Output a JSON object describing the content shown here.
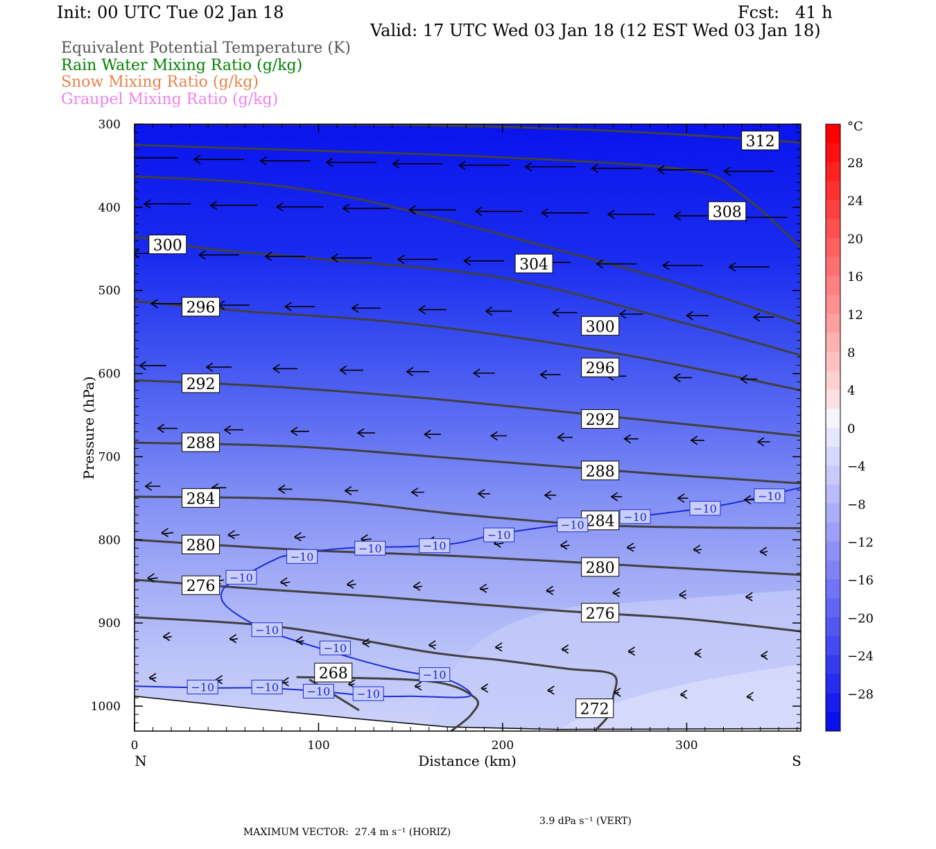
{
  "header": {
    "init": "Init: 00 UTC Tue 02 Jan 18",
    "fcst": "Fcst:   41 h",
    "valid": "Valid: 17 UTC Wed 03 Jan 18 (12 EST Wed 03 Jan 18)"
  },
  "legend": [
    {
      "label": "Equivalent Potential Temperature (K)",
      "color": "#555555"
    },
    {
      "label": "Rain Water Mixing Ratio (g/kg)",
      "color": "#008000"
    },
    {
      "label": "Snow Mixing Ratio (g/kg)",
      "color": "#e8834a"
    },
    {
      "label": "Graupel Mixing Ratio (g/kg)",
      "color": "#ee82ee"
    }
  ],
  "chart_data": {
    "type": "cross-section",
    "xlabel": "Distance (km)",
    "ylabel": "Pressure (hPa)",
    "x_ticks": [
      0,
      100,
      200,
      300
    ],
    "x_range": [
      0,
      362
    ],
    "y_ticks": [
      300,
      400,
      500,
      600,
      700,
      800,
      900,
      1000
    ],
    "y_range": [
      300,
      1030
    ],
    "left_end_label": "N",
    "right_end_label": "S",
    "colorbar": {
      "unit": "°C",
      "labels": [
        "28",
        "24",
        "20",
        "16",
        "12",
        "8",
        "4",
        "0",
        "−4",
        "−8",
        "−12",
        "−16",
        "−20",
        "−24",
        "−28"
      ]
    },
    "theta_e_contours": [
      {
        "level": "312",
        "points": [
          [
            36,
            300
          ],
          [
            150,
            301
          ],
          [
            260,
            308
          ],
          [
            362,
            322
          ]
        ],
        "labels": [
          [
            340,
            320
          ]
        ]
      },
      {
        "level": "308",
        "points": [
          [
            0,
            325
          ],
          [
            100,
            332
          ],
          [
            200,
            340
          ],
          [
            300,
            355
          ],
          [
            330,
            385
          ],
          [
            362,
            448
          ]
        ],
        "labels": [
          [
            322,
            405
          ]
        ]
      },
      {
        "level": "304",
        "points": [
          [
            0,
            363
          ],
          [
            60,
            370
          ],
          [
            110,
            385
          ],
          [
            160,
            410
          ],
          [
            220,
            445
          ],
          [
            290,
            488
          ],
          [
            362,
            540
          ]
        ],
        "labels": [
          [
            217,
            468
          ]
        ]
      },
      {
        "level": "300",
        "points": [
          [
            0,
            435
          ],
          [
            40,
            450
          ],
          [
            100,
            462
          ],
          [
            200,
            485
          ],
          [
            300,
            540
          ],
          [
            362,
            578
          ]
        ],
        "labels": [
          [
            18,
            445
          ],
          [
            253,
            543
          ]
        ]
      },
      {
        "level": "296",
        "points": [
          [
            0,
            513
          ],
          [
            60,
            525
          ],
          [
            150,
            540
          ],
          [
            260,
            575
          ],
          [
            362,
            620
          ]
        ],
        "labels": [
          [
            36,
            520
          ],
          [
            253,
            593
          ]
        ]
      },
      {
        "level": "292",
        "points": [
          [
            0,
            608
          ],
          [
            70,
            615
          ],
          [
            160,
            630
          ],
          [
            260,
            652
          ],
          [
            362,
            675
          ]
        ],
        "labels": [
          [
            36,
            612
          ],
          [
            253,
            655
          ]
        ]
      },
      {
        "level": "288",
        "points": [
          [
            0,
            683
          ],
          [
            90,
            688
          ],
          [
            180,
            703
          ],
          [
            280,
            720
          ],
          [
            362,
            732
          ]
        ],
        "labels": [
          [
            36,
            683
          ],
          [
            253,
            717
          ]
        ]
      },
      {
        "level": "284",
        "points": [
          [
            0,
            748
          ],
          [
            100,
            752
          ],
          [
            180,
            770
          ],
          [
            260,
            783
          ],
          [
            362,
            786
          ]
        ],
        "labels": [
          [
            36,
            750
          ],
          [
            253,
            777
          ]
        ]
      },
      {
        "level": "280",
        "points": [
          [
            0,
            800
          ],
          [
            90,
            812
          ],
          [
            180,
            820
          ],
          [
            280,
            832
          ],
          [
            362,
            842
          ]
        ],
        "labels": [
          [
            36,
            806
          ],
          [
            253,
            833
          ]
        ]
      },
      {
        "level": "276",
        "points": [
          [
            0,
            848
          ],
          [
            60,
            858
          ],
          [
            130,
            868
          ],
          [
            230,
            885
          ],
          [
            300,
            895
          ],
          [
            362,
            910
          ]
        ],
        "labels": [
          [
            36,
            855
          ],
          [
            253,
            888
          ]
        ]
      },
      {
        "level": "272",
        "points": [
          [
            0,
            893
          ],
          [
            80,
            905
          ],
          [
            160,
            935
          ],
          [
            200,
            945
          ],
          [
            235,
            955
          ],
          [
            260,
            962
          ],
          [
            260,
            990
          ],
          [
            258,
            1010
          ],
          [
            250,
            1030
          ]
        ],
        "labels": [
          [
            250,
            1003
          ]
        ]
      },
      {
        "level": "268",
        "points": [
          [
            88,
            965
          ],
          [
            160,
            970
          ],
          [
            185,
            990
          ],
          [
            183,
            1010
          ],
          [
            172,
            1030
          ]
        ],
        "labels": [
          [
            108,
            960
          ]
        ]
      },
      {
        "level": "268",
        "points": [
          [
            95,
            968
          ],
          [
            122,
            1005
          ]
        ],
        "labels": []
      }
    ],
    "temp_isotherms": [
      {
        "level": "−10",
        "points": [
          [
            0,
            976
          ],
          [
            40,
            978
          ],
          [
            70,
            978
          ],
          [
            100,
            982
          ],
          [
            130,
            988
          ],
          [
            150,
            988
          ],
          [
            182,
            988
          ],
          [
            170,
            968
          ],
          [
            140,
            955
          ],
          [
            100,
            930
          ],
          [
            70,
            907
          ],
          [
            50,
            880
          ],
          [
            48,
            860
          ],
          [
            58,
            845
          ],
          [
            75,
            825
          ],
          [
            85,
            818
          ],
          [
            115,
            810
          ],
          [
            150,
            808
          ],
          [
            175,
            804
          ],
          [
            200,
            792
          ],
          [
            240,
            780
          ],
          [
            280,
            770
          ],
          [
            320,
            758
          ],
          [
            362,
            737
          ]
        ],
        "labels": [
          [
            37,
            977
          ],
          [
            72,
            977
          ],
          [
            100,
            982
          ],
          [
            127,
            985
          ],
          [
            163,
            962
          ],
          [
            109,
            930
          ],
          [
            72,
            908
          ],
          [
            58,
            845
          ],
          [
            91,
            820
          ],
          [
            128,
            810
          ],
          [
            163,
            807
          ],
          [
            198,
            794
          ],
          [
            238,
            782
          ],
          [
            272,
            772
          ],
          [
            310,
            762
          ],
          [
            345,
            747
          ]
        ]
      }
    ],
    "wind_arrows_note": "horizontal/vertical circulation vectors, mostly pointing north (leftward)",
    "max_vector": {
      "label": "MAXIMUM VECTOR:",
      "horiz": "27.4 m s⁻¹ (HORIZ)",
      "vert": "3.9 dPa s⁻¹ (VERT)"
    }
  }
}
